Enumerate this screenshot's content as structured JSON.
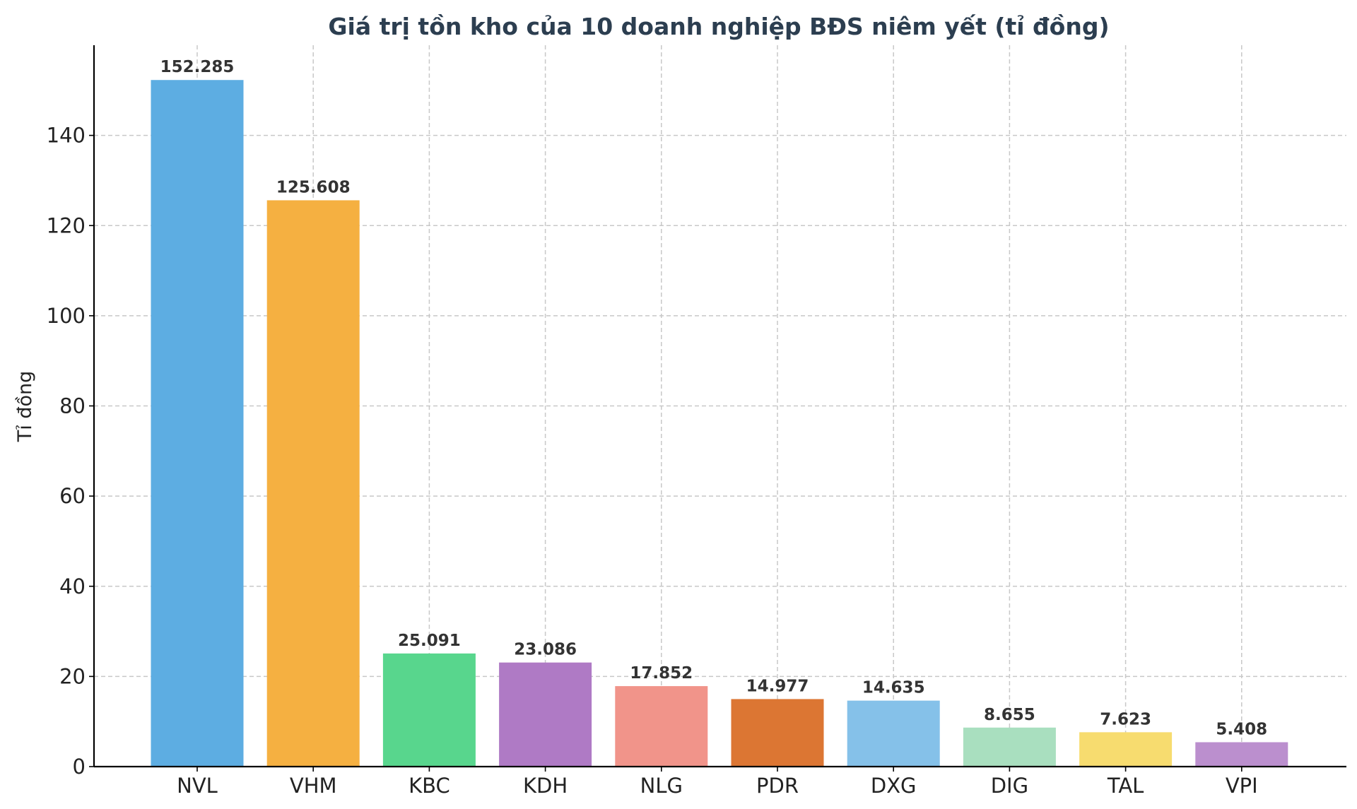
{
  "chart_data": {
    "type": "bar",
    "title": "Giá trị tồn kho của 10 doanh nghiệp BĐS niêm yết (tỉ đồng)",
    "xlabel": "",
    "ylabel": "Tỉ đồng",
    "ylim": [
      0,
      160
    ],
    "yticks": [
      0,
      20,
      40,
      60,
      80,
      100,
      120,
      140
    ],
    "grid": true,
    "categories": [
      "NVL",
      "VHM",
      "KBC",
      "KDH",
      "NLG",
      "PDR",
      "DXG",
      "DIG",
      "TAL",
      "VPI"
    ],
    "values": [
      152.285,
      125.608,
      25.091,
      23.086,
      17.852,
      14.977,
      14.635,
      8.655,
      7.623,
      5.408
    ],
    "value_labels": [
      "152.285",
      "125.608",
      "25.091",
      "23.086",
      "17.852",
      "14.977",
      "14.635",
      "8.655",
      "7.623",
      "5.408"
    ],
    "colors": [
      "#5dade2",
      "#f5b041",
      "#58d68d",
      "#af7ac5",
      "#f1948a",
      "#dc7633",
      "#85c1e9",
      "#a9dfbf",
      "#f7dc6f",
      "#bb8fce"
    ]
  }
}
